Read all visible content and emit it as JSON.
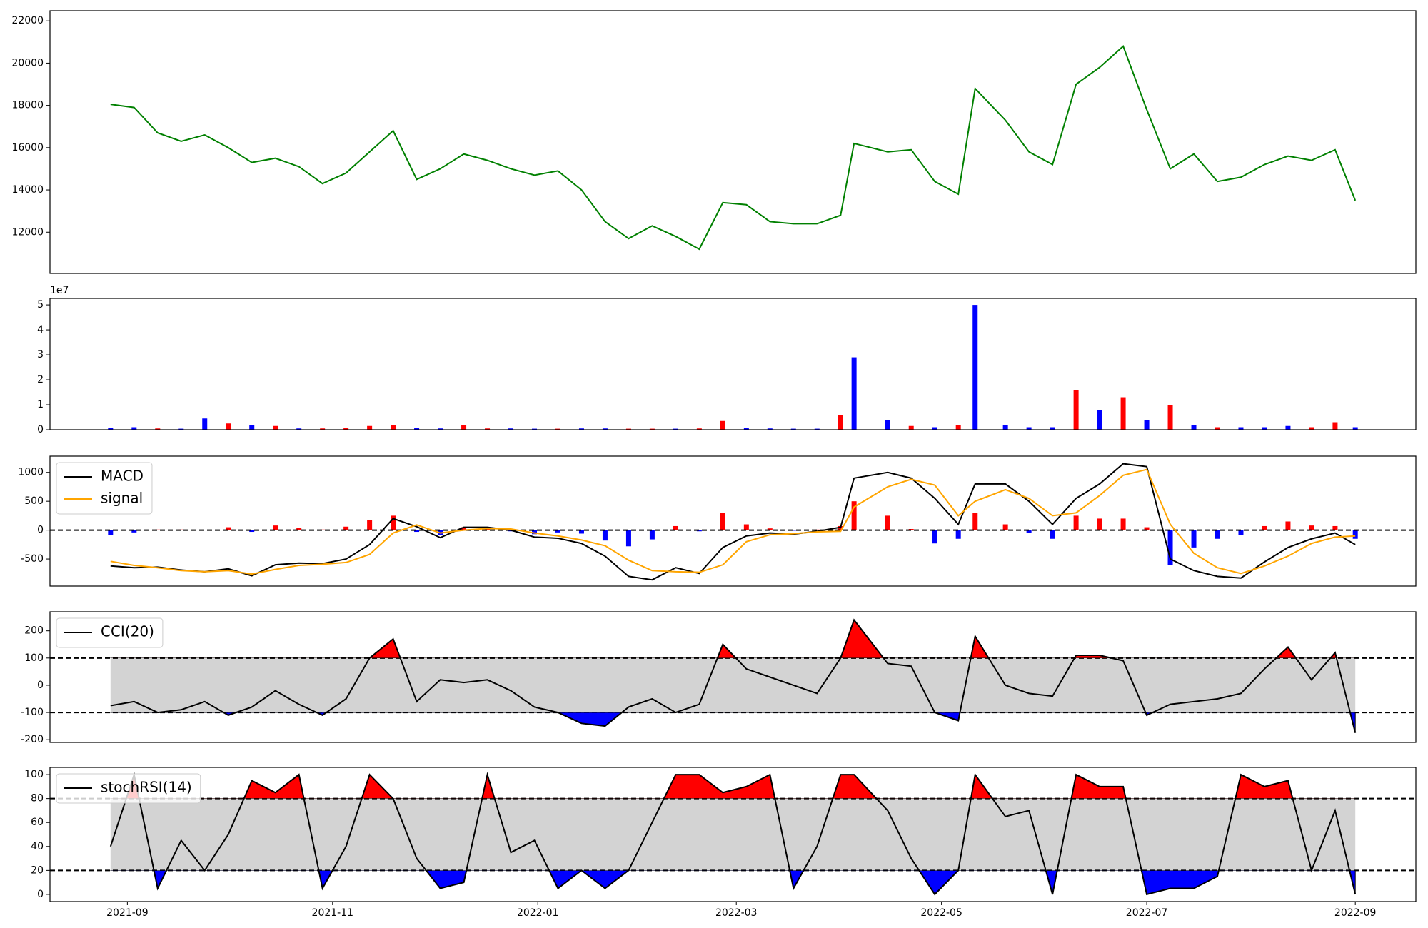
{
  "chart_data": [
    {
      "type": "line",
      "x": [
        "2021-08-27",
        "2021-09-03",
        "2021-09-10",
        "2021-09-17",
        "2021-09-24",
        "2021-10-01",
        "2021-10-08",
        "2021-10-15",
        "2021-10-22",
        "2021-10-29",
        "2021-11-05",
        "2021-11-12",
        "2021-11-19",
        "2021-11-26",
        "2021-12-03",
        "2021-12-10",
        "2021-12-17",
        "2021-12-24",
        "2021-12-31",
        "2022-01-07",
        "2022-01-14",
        "2022-01-21",
        "2022-01-28",
        "2022-02-04",
        "2022-02-11",
        "2022-02-18",
        "2022-02-25",
        "2022-03-04",
        "2022-03-11",
        "2022-03-18",
        "2022-03-25",
        "2022-04-01",
        "2022-04-05",
        "2022-04-15",
        "2022-04-22",
        "2022-04-29",
        "2022-05-06",
        "2022-05-11",
        "2022-05-20",
        "2022-05-27",
        "2022-06-03",
        "2022-06-10",
        "2022-06-17",
        "2022-06-24",
        "2022-07-01",
        "2022-07-08",
        "2022-07-15",
        "2022-07-22",
        "2022-07-29",
        "2022-08-05",
        "2022-08-12",
        "2022-08-19",
        "2022-08-26",
        "2022-09-01"
      ],
      "xlim": [
        "2021-08-09",
        "2022-09-19"
      ],
      "series": [
        {
          "color": "#008000",
          "values": [
            18050,
            17900,
            16700,
            16300,
            16600,
            16000,
            15300,
            15500,
            15100,
            14300,
            14800,
            15800,
            16800,
            14500,
            15000,
            15700,
            15400,
            15000,
            14700,
            14900,
            14000,
            12500,
            11700,
            12300,
            11800,
            11200,
            13400,
            13300,
            12500,
            12400,
            12400,
            12800,
            16200,
            15800,
            15900,
            14400,
            13800,
            18800,
            17300,
            15800,
            15200,
            19000,
            19800,
            20800,
            17800,
            15000,
            15700,
            14400,
            14600,
            15200,
            15600,
            15400,
            15900,
            13500
          ]
        }
      ],
      "ylim": [
        10050,
        22480
      ],
      "yticks": [
        12000,
        14000,
        16000,
        18000,
        20000,
        22000
      ]
    },
    {
      "type": "bar",
      "x": [
        "2021-08-27",
        "2021-09-03",
        "2021-09-10",
        "2021-09-17",
        "2021-09-24",
        "2021-10-01",
        "2021-10-08",
        "2021-10-15",
        "2021-10-22",
        "2021-10-29",
        "2021-11-05",
        "2021-11-12",
        "2021-11-19",
        "2021-11-26",
        "2021-12-03",
        "2021-12-10",
        "2021-12-17",
        "2021-12-24",
        "2021-12-31",
        "2022-01-07",
        "2022-01-14",
        "2022-01-21",
        "2022-01-28",
        "2022-02-04",
        "2022-02-11",
        "2022-02-18",
        "2022-02-25",
        "2022-03-04",
        "2022-03-11",
        "2022-03-18",
        "2022-03-25",
        "2022-04-01",
        "2022-04-05",
        "2022-04-15",
        "2022-04-22",
        "2022-04-29",
        "2022-05-06",
        "2022-05-11",
        "2022-05-20",
        "2022-05-27",
        "2022-06-03",
        "2022-06-10",
        "2022-06-17",
        "2022-06-24",
        "2022-07-01",
        "2022-07-08",
        "2022-07-15",
        "2022-07-22",
        "2022-07-29",
        "2022-08-05",
        "2022-08-12",
        "2022-08-19",
        "2022-08-26",
        "2022-09-01"
      ],
      "xlim": [
        "2021-08-09",
        "2022-09-19"
      ],
      "values": [
        0.08,
        0.1,
        0.05,
        0.04,
        0.45,
        0.25,
        0.2,
        0.15,
        0.05,
        0.05,
        0.08,
        0.15,
        0.2,
        0.08,
        0.05,
        0.2,
        0.05,
        0.05,
        0.04,
        0.04,
        0.05,
        0.05,
        0.04,
        0.04,
        0.04,
        0.05,
        0.35,
        0.08,
        0.05,
        0.04,
        0.04,
        0.6,
        2.9,
        0.4,
        0.15,
        0.1,
        0.2,
        5.0,
        0.2,
        0.1,
        0.1,
        1.6,
        0.8,
        1.3,
        0.4,
        1.0,
        0.2,
        0.1,
        0.1,
        0.1,
        0.15,
        0.1,
        0.3,
        0.1
      ],
      "bar_colors": [
        "blue",
        "blue",
        "red",
        "blue",
        "blue",
        "red",
        "blue",
        "red",
        "blue",
        "red",
        "red",
        "red",
        "red",
        "blue",
        "blue",
        "red",
        "red",
        "blue",
        "blue",
        "red",
        "blue",
        "blue",
        "red",
        "red",
        "blue",
        "red",
        "red",
        "blue",
        "blue",
        "blue",
        "blue",
        "red",
        "blue",
        "blue",
        "red",
        "blue",
        "red",
        "blue",
        "blue",
        "blue",
        "blue",
        "red",
        "blue",
        "red",
        "blue",
        "red",
        "blue",
        "red",
        "blue",
        "blue",
        "blue",
        "red",
        "red",
        "blue"
      ],
      "offset_label": "1e7",
      "ylim": [
        0,
        5.26
      ],
      "yticks": [
        0,
        1,
        2,
        3,
        4,
        5
      ]
    },
    {
      "type": "line",
      "x": [
        "2021-08-27",
        "2021-09-03",
        "2021-09-10",
        "2021-09-17",
        "2021-09-24",
        "2021-10-01",
        "2021-10-08",
        "2021-10-15",
        "2021-10-22",
        "2021-10-29",
        "2021-11-05",
        "2021-11-12",
        "2021-11-19",
        "2021-11-26",
        "2021-12-03",
        "2021-12-10",
        "2021-12-17",
        "2021-12-24",
        "2021-12-31",
        "2022-01-07",
        "2022-01-14",
        "2022-01-21",
        "2022-01-28",
        "2022-02-04",
        "2022-02-11",
        "2022-02-18",
        "2022-02-25",
        "2022-03-04",
        "2022-03-11",
        "2022-03-18",
        "2022-03-25",
        "2022-04-01",
        "2022-04-05",
        "2022-04-15",
        "2022-04-22",
        "2022-04-29",
        "2022-05-06",
        "2022-05-11",
        "2022-05-20",
        "2022-05-27",
        "2022-06-03",
        "2022-06-10",
        "2022-06-17",
        "2022-06-24",
        "2022-07-01",
        "2022-07-08",
        "2022-07-15",
        "2022-07-22",
        "2022-07-29",
        "2022-08-05",
        "2022-08-12",
        "2022-08-19",
        "2022-08-26",
        "2022-09-01"
      ],
      "xlim": [
        "2021-08-09",
        "2022-09-19"
      ],
      "histogram": {
        "pos_color": "red",
        "neg_color": "blue",
        "values": [
          -80,
          -40,
          10,
          10,
          0,
          50,
          -30,
          80,
          40,
          10,
          60,
          170,
          250,
          -30,
          -80,
          50,
          20,
          -20,
          -70,
          -40,
          -60,
          -180,
          -280,
          -160,
          70,
          -20,
          300,
          100,
          30,
          -10,
          10,
          70,
          500,
          250,
          20,
          -230,
          -150,
          300,
          100,
          -50,
          -150,
          250,
          200,
          200,
          50,
          -600,
          -300,
          -150,
          -80,
          70,
          150,
          80,
          70,
          -150
        ]
      },
      "series": [
        {
          "name": "MACD",
          "color": "#000000",
          "values": [
            -620,
            -650,
            -640,
            -690,
            -720,
            -670,
            -790,
            -600,
            -570,
            -580,
            -500,
            -250,
            200,
            60,
            -130,
            50,
            50,
            0,
            -120,
            -140,
            -230,
            -450,
            -800,
            -860,
            -650,
            -750,
            -300,
            -100,
            -50,
            -70,
            -20,
            50,
            900,
            1000,
            900,
            550,
            100,
            800,
            800,
            500,
            100,
            550,
            800,
            1150,
            1100,
            -500,
            -700,
            -800,
            -830,
            -550,
            -300,
            -150,
            -50,
            -250
          ]
        },
        {
          "name": "signal",
          "color": "#ffa500",
          "values": [
            -540,
            -610,
            -650,
            -700,
            -720,
            -700,
            -760,
            -680,
            -610,
            -590,
            -560,
            -420,
            -50,
            90,
            -50,
            0,
            30,
            20,
            -50,
            -100,
            -170,
            -270,
            -520,
            -700,
            -720,
            -730,
            -600,
            -200,
            -80,
            -60,
            -30,
            -20,
            400,
            750,
            880,
            780,
            250,
            500,
            700,
            550,
            250,
            300,
            600,
            950,
            1050,
            100,
            -400,
            -650,
            -750,
            -620,
            -450,
            -230,
            -120,
            -100
          ]
        }
      ],
      "hline": 0,
      "legend": "upper left",
      "ylim": [
        -969,
        1281
      ],
      "yticks": [
        -500,
        0,
        500,
        1000
      ]
    },
    {
      "type": "line",
      "x": [
        "2021-08-27",
        "2021-09-03",
        "2021-09-10",
        "2021-09-17",
        "2021-09-24",
        "2021-10-01",
        "2021-10-08",
        "2021-10-15",
        "2021-10-22",
        "2021-10-29",
        "2021-11-05",
        "2021-11-12",
        "2021-11-19",
        "2021-11-26",
        "2021-12-03",
        "2021-12-10",
        "2021-12-17",
        "2021-12-24",
        "2021-12-31",
        "2022-01-07",
        "2022-01-14",
        "2022-01-21",
        "2022-01-28",
        "2022-02-04",
        "2022-02-11",
        "2022-02-18",
        "2022-02-25",
        "2022-03-04",
        "2022-03-11",
        "2022-03-18",
        "2022-03-25",
        "2022-04-01",
        "2022-04-05",
        "2022-04-15",
        "2022-04-22",
        "2022-04-29",
        "2022-05-06",
        "2022-05-11",
        "2022-05-20",
        "2022-05-27",
        "2022-06-03",
        "2022-06-10",
        "2022-06-17",
        "2022-06-24",
        "2022-07-01",
        "2022-07-08",
        "2022-07-15",
        "2022-07-22",
        "2022-07-29",
        "2022-08-05",
        "2022-08-12",
        "2022-08-19",
        "2022-08-26",
        "2022-09-01"
      ],
      "xlim": [
        "2021-08-09",
        "2022-09-19"
      ],
      "series": [
        {
          "name": "CCI(20)",
          "color": "#000000",
          "values": [
            -75,
            -60,
            -100,
            -90,
            -60,
            -110,
            -80,
            -20,
            -70,
            -110,
            -50,
            100,
            170,
            -60,
            20,
            10,
            20,
            -20,
            -80,
            -100,
            -140,
            -150,
            -80,
            -50,
            -100,
            -70,
            150,
            60,
            30,
            0,
            -30,
            100,
            240,
            80,
            70,
            -100,
            -130,
            180,
            0,
            -30,
            -40,
            110,
            110,
            90,
            -110,
            -70,
            -60,
            -50,
            -30,
            60,
            140,
            20,
            120,
            -175
          ]
        }
      ],
      "band": {
        "upper": 100,
        "lower": -100,
        "color": "#d3d3d3",
        "upper_color": "red",
        "lower_color": "blue"
      },
      "legend": "upper left",
      "ylim": [
        -210,
        270
      ],
      "yticks": [
        -200,
        -100,
        0,
        100,
        200
      ]
    },
    {
      "type": "line",
      "x": [
        "2021-08-27",
        "2021-09-03",
        "2021-09-10",
        "2021-09-17",
        "2021-09-24",
        "2021-10-01",
        "2021-10-08",
        "2021-10-15",
        "2021-10-22",
        "2021-10-29",
        "2021-11-05",
        "2021-11-12",
        "2021-11-19",
        "2021-11-26",
        "2021-12-03",
        "2021-12-10",
        "2021-12-17",
        "2021-12-24",
        "2021-12-31",
        "2022-01-07",
        "2022-01-14",
        "2022-01-21",
        "2022-01-28",
        "2022-02-04",
        "2022-02-11",
        "2022-02-18",
        "2022-02-25",
        "2022-03-04",
        "2022-03-11",
        "2022-03-18",
        "2022-03-25",
        "2022-04-01",
        "2022-04-05",
        "2022-04-15",
        "2022-04-22",
        "2022-04-29",
        "2022-05-06",
        "2022-05-11",
        "2022-05-20",
        "2022-05-27",
        "2022-06-03",
        "2022-06-10",
        "2022-06-17",
        "2022-06-24",
        "2022-07-01",
        "2022-07-08",
        "2022-07-15",
        "2022-07-22",
        "2022-07-29",
        "2022-08-05",
        "2022-08-12",
        "2022-08-19",
        "2022-08-26",
        "2022-09-01"
      ],
      "xlim": [
        "2021-08-09",
        "2022-09-19"
      ],
      "series": [
        {
          "name": "stochRSI(14)",
          "color": "#000000",
          "values": [
            40,
            100,
            5,
            45,
            20,
            50,
            95,
            85,
            100,
            5,
            40,
            100,
            80,
            30,
            5,
            10,
            100,
            35,
            45,
            5,
            20,
            5,
            20,
            60,
            100,
            100,
            85,
            90,
            100,
            5,
            40,
            100,
            100,
            70,
            30,
            0,
            20,
            100,
            65,
            70,
            0,
            100,
            90,
            90,
            0,
            5,
            5,
            15,
            100,
            90,
            95,
            20,
            70,
            0
          ]
        }
      ],
      "band": {
        "upper": 80,
        "lower": 20,
        "color": "#d3d3d3",
        "upper_color": "red",
        "lower_color": "blue"
      },
      "legend": "upper left",
      "ylim": [
        -6,
        106
      ],
      "yticks": [
        0,
        20,
        40,
        60,
        80,
        100
      ],
      "xticks": [
        {
          "value": "2021-09-01",
          "label": "2021-09"
        },
        {
          "value": "2021-11-01",
          "label": "2021-11"
        },
        {
          "value": "2022-01-01",
          "label": "2022-01"
        },
        {
          "value": "2022-03-01",
          "label": "2022-03"
        },
        {
          "value": "2022-05-01",
          "label": "2022-05"
        },
        {
          "value": "2022-07-01",
          "label": "2022-07"
        },
        {
          "value": "2022-09-01",
          "label": "2022-09"
        }
      ]
    }
  ]
}
